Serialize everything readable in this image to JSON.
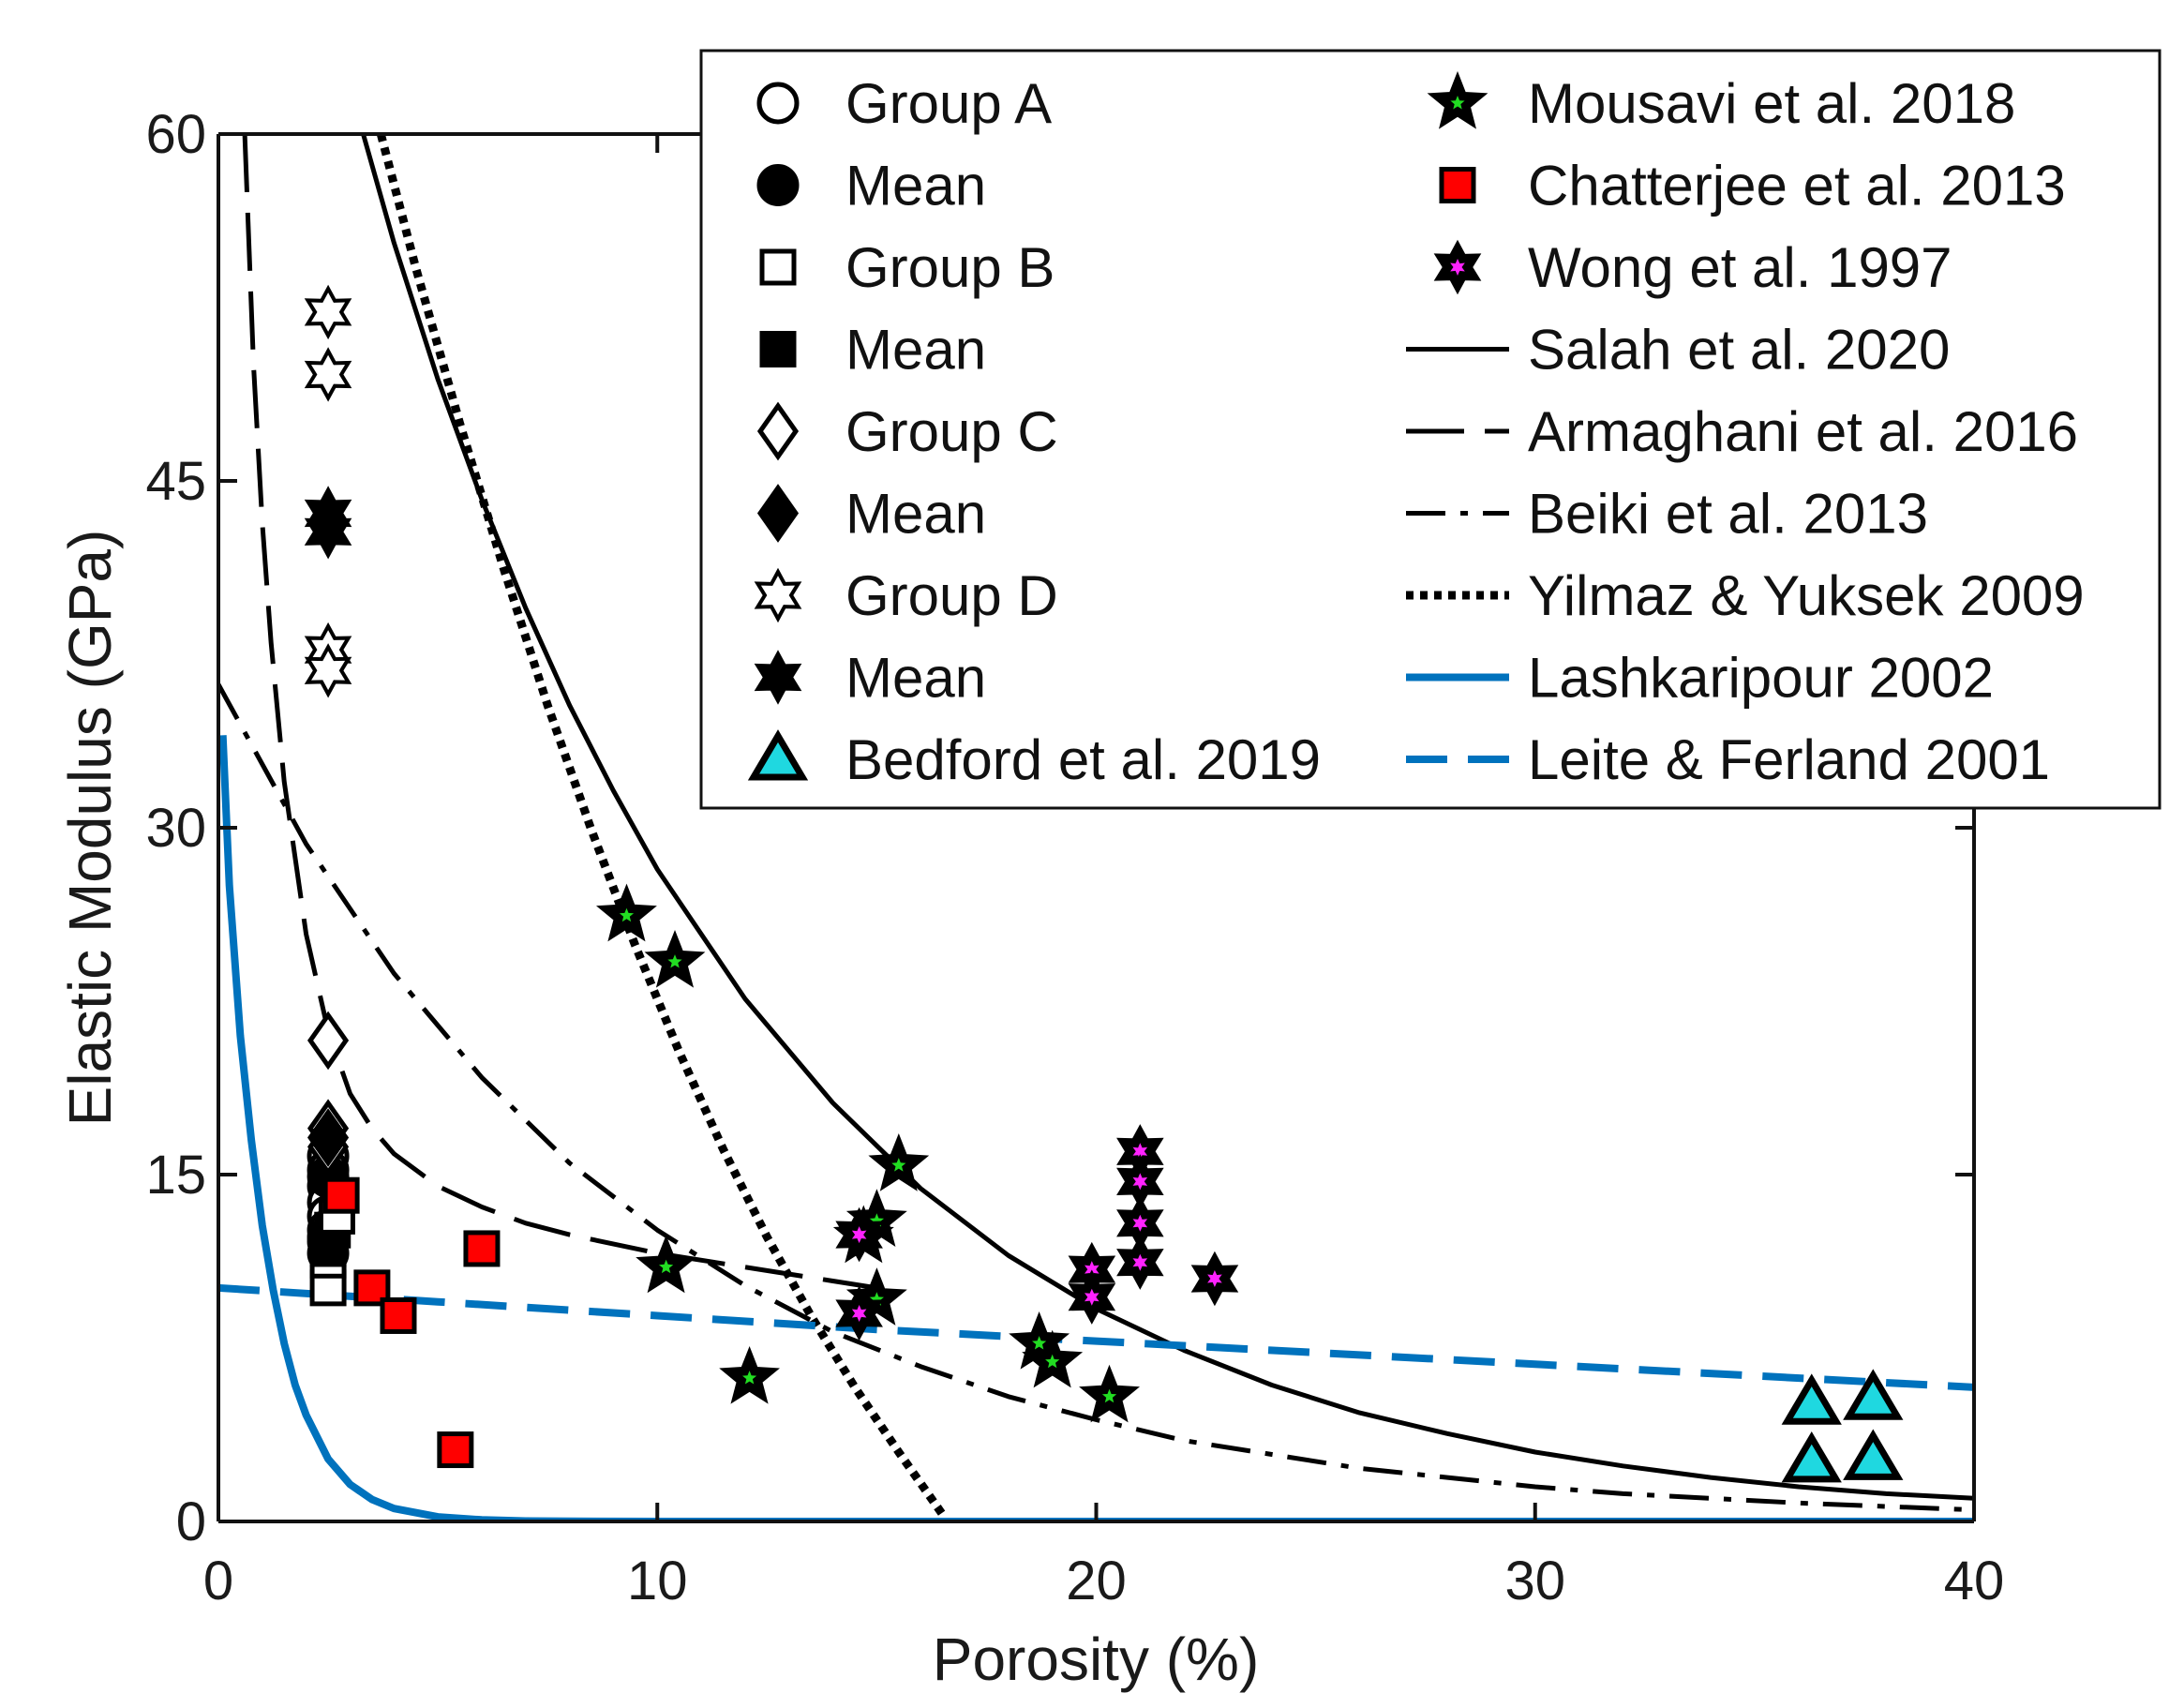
{
  "chart_data": {
    "type": "scatter",
    "xlabel": "Porosity (%)",
    "ylabel": "Elastic Modulus (GPa)",
    "xlim": [
      0,
      40
    ],
    "ylim": [
      0,
      60
    ],
    "xticks": [
      0,
      10,
      20,
      30,
      40
    ],
    "yticks": [
      0,
      15,
      30,
      45,
      60
    ],
    "x_tick_labels": [
      "0",
      "10",
      "20",
      "30",
      "40"
    ],
    "y_tick_labels": [
      "0",
      "15",
      "30",
      "45",
      "60"
    ],
    "grid": false,
    "legend_position": "top-right",
    "scatter_series": [
      {
        "name": "Group A",
        "marker": "circle",
        "filled": false,
        "face": "#ffffff",
        "points": [
          [
            2.5,
            15.8
          ],
          [
            2.5,
            15.2
          ],
          [
            2.5,
            14.5
          ],
          [
            2.5,
            13.8
          ],
          [
            2.5,
            13.2
          ],
          [
            2.5,
            12.6
          ],
          [
            2.5,
            12.1
          ],
          [
            2.5,
            11.6
          ]
        ]
      },
      {
        "name": "Mean",
        "marker": "circle",
        "filled": true,
        "face": "#000000",
        "points": [
          [
            2.5,
            14.9
          ],
          [
            2.5,
            12.3
          ]
        ]
      },
      {
        "name": "Group B",
        "marker": "square",
        "filled": false,
        "face": "#ffffff",
        "points": [
          [
            2.5,
            10.1
          ],
          [
            2.5,
            11.3
          ],
          [
            2.6,
            12.6
          ],
          [
            2.7,
            13.2
          ]
        ]
      },
      {
        "name": "Mean",
        "marker": "square",
        "filled": true,
        "face": "#000000",
        "points": [
          [
            2.5,
            11.8
          ]
        ]
      },
      {
        "name": "Group C",
        "marker": "diamond",
        "filled": false,
        "face": "#ffffff",
        "points": [
          [
            2.5,
            20.8
          ],
          [
            2.5,
            17.0
          ],
          [
            2.5,
            16.2
          ]
        ]
      },
      {
        "name": "Mean",
        "marker": "diamond",
        "filled": true,
        "face": "#000000",
        "points": [
          [
            2.5,
            16.6
          ]
        ]
      },
      {
        "name": "Group D",
        "marker": "hexagram",
        "filled": false,
        "face": "#ffffff",
        "points": [
          [
            2.5,
            52.3
          ],
          [
            2.5,
            49.6
          ],
          [
            2.5,
            37.7
          ],
          [
            2.5,
            36.8
          ]
        ]
      },
      {
        "name": "Mean",
        "marker": "hexagram",
        "filled": true,
        "face": "#000000",
        "points": [
          [
            2.5,
            43.6
          ],
          [
            2.5,
            42.8
          ]
        ]
      },
      {
        "name": "Bedford et al. 2019",
        "marker": "triangle",
        "filled": true,
        "face": "#1fd8e0",
        "points": [
          [
            36.3,
            5.1
          ],
          [
            37.7,
            5.3
          ],
          [
            36.3,
            2.6
          ],
          [
            37.7,
            2.7
          ]
        ]
      },
      {
        "name": "Mousavi et al. 2018",
        "marker": "star",
        "filled": true,
        "face": "#000000",
        "points": [
          [
            9.3,
            26.2
          ],
          [
            10.4,
            24.2
          ],
          [
            15.5,
            15.4
          ],
          [
            15.0,
            13.0
          ],
          [
            10.2,
            11.0
          ],
          [
            15.0,
            9.6
          ],
          [
            12.1,
            6.2
          ],
          [
            18.7,
            7.7
          ],
          [
            19.0,
            6.9
          ],
          [
            20.3,
            5.4
          ],
          [
            14.7,
            12.3
          ]
        ]
      },
      {
        "name": "Chatterjee et al. 2013",
        "marker": "square",
        "filled": true,
        "face": "#ff0000",
        "points": [
          [
            2.8,
            14.1
          ],
          [
            6.0,
            11.8
          ],
          [
            3.5,
            10.1
          ],
          [
            4.1,
            8.9
          ],
          [
            5.4,
            3.1
          ]
        ]
      },
      {
        "name": "Wong et al. 1997",
        "marker": "hexagram",
        "filled": true,
        "face": "#000000",
        "points": [
          [
            21.0,
            16.0
          ],
          [
            21.0,
            14.7
          ],
          [
            21.0,
            12.9
          ],
          [
            21.0,
            11.2
          ],
          [
            19.9,
            10.9
          ],
          [
            19.9,
            9.7
          ],
          [
            22.7,
            10.5
          ],
          [
            14.6,
            12.4
          ],
          [
            14.6,
            9.0
          ]
        ]
      }
    ],
    "line_series": [
      {
        "name": "Salah et al. 2020",
        "style": "solid",
        "color": "#000000",
        "x": [
          3.3,
          4,
          5,
          6,
          7,
          8,
          9,
          10,
          12,
          14,
          16,
          18,
          20,
          22,
          24,
          26,
          28,
          30,
          32,
          34,
          36,
          38,
          40
        ],
        "y": [
          60.0,
          55.3,
          49.4,
          44.2,
          39.5,
          35.3,
          31.6,
          28.2,
          22.6,
          18.1,
          14.4,
          11.5,
          9.2,
          7.4,
          5.9,
          4.7,
          3.8,
          3.0,
          2.4,
          1.9,
          1.5,
          1.2,
          1.0
        ]
      },
      {
        "name": "Armaghani et al. 2016",
        "style": "longdash",
        "color": "#000000",
        "x": [
          0.6,
          0.8,
          1.0,
          1.2,
          1.5,
          2.0,
          2.5,
          3.0,
          3.5,
          4.0,
          5.0,
          6.0,
          7.0,
          8.0,
          10.0,
          12.0,
          14.0,
          15.0
        ],
        "y": [
          60.0,
          50.0,
          43.2,
          38.0,
          32.0,
          25.4,
          21.2,
          18.5,
          17.0,
          15.9,
          14.5,
          13.6,
          12.9,
          12.4,
          11.6,
          11.0,
          10.4,
          10.1
        ]
      },
      {
        "name": "Beiki et al. 2013",
        "style": "dashdot",
        "color": "#000000",
        "x": [
          0,
          2,
          4,
          6,
          8,
          10,
          12,
          14,
          16,
          18,
          20,
          22,
          24,
          26,
          28,
          30,
          32,
          34,
          36,
          38,
          40
        ],
        "y": [
          36.2,
          29.3,
          23.7,
          19.2,
          15.5,
          12.6,
          10.2,
          8.2,
          6.7,
          5.4,
          4.4,
          3.5,
          2.9,
          2.3,
          1.9,
          1.5,
          1.2,
          1.0,
          0.8,
          0.65,
          0.5
        ]
      },
      {
        "name": "Yilmaz & Yuksek 2009",
        "style": "dotted",
        "color": "#000000",
        "x": [
          3.7,
          4.5,
          5.5,
          6.5,
          7.5,
          8.5,
          9.5,
          10.5,
          11.5,
          12.5,
          13.5,
          14.5,
          15.5,
          16.5
        ],
        "y": [
          60.0,
          54.2,
          47.5,
          41.2,
          35.3,
          29.9,
          24.9,
          20.3,
          16.1,
          12.3,
          8.9,
          5.8,
          3.0,
          0.3
        ]
      },
      {
        "name": "Lashkaripour 2002",
        "style": "solid",
        "color": "#0072bd",
        "x": [
          0.1,
          0.25,
          0.5,
          0.75,
          1.0,
          1.25,
          1.5,
          1.75,
          2.0,
          2.5,
          3.0,
          3.5,
          4.0,
          5.0,
          6.0,
          7.0,
          8.0,
          10.0,
          15.0,
          20.0,
          30.0,
          40.0
        ],
        "y": [
          34.0,
          27.5,
          21.0,
          16.5,
          12.8,
          10.0,
          7.7,
          5.9,
          4.6,
          2.7,
          1.6,
          0.95,
          0.56,
          0.2,
          0.07,
          0.02,
          0.01,
          0,
          0,
          0,
          0,
          0
        ]
      },
      {
        "name": "Leite & Ferland 2001",
        "style": "dashed",
        "color": "#0072bd",
        "x": [
          0,
          5,
          10,
          15,
          20,
          25,
          30,
          35,
          40
        ],
        "y": [
          10.1,
          9.5,
          8.9,
          8.3,
          7.8,
          7.3,
          6.8,
          6.3,
          5.8
        ]
      }
    ],
    "legend_entries": [
      {
        "label": "Group A",
        "kind": "marker",
        "marker": "circle",
        "filled": false,
        "face": "#ffffff",
        "column": "left"
      },
      {
        "label": "Mean",
        "kind": "marker",
        "marker": "circle",
        "filled": true,
        "face": "#000000",
        "column": "left"
      },
      {
        "label": "Group B",
        "kind": "marker",
        "marker": "square",
        "filled": false,
        "face": "#ffffff",
        "column": "left"
      },
      {
        "label": "Mean",
        "kind": "marker",
        "marker": "square",
        "filled": true,
        "face": "#000000",
        "column": "left"
      },
      {
        "label": "Group C",
        "kind": "marker",
        "marker": "diamond",
        "filled": false,
        "face": "#ffffff",
        "column": "left"
      },
      {
        "label": "Mean",
        "kind": "marker",
        "marker": "diamond",
        "filled": true,
        "face": "#000000",
        "column": "left"
      },
      {
        "label": "Group D",
        "kind": "marker",
        "marker": "hexagram",
        "filled": false,
        "face": "#ffffff",
        "column": "left"
      },
      {
        "label": "Mean",
        "kind": "marker",
        "marker": "hexagram",
        "filled": true,
        "face": "#000000",
        "column": "left"
      },
      {
        "label": "Bedford et al. 2019",
        "kind": "marker",
        "marker": "triangle",
        "filled": true,
        "face": "#1fd8e0",
        "column": "left"
      },
      {
        "label": "Mousavi et al. 2018",
        "kind": "marker",
        "marker": "star",
        "filled": true,
        "face": "#000000",
        "inner": "#22dd22",
        "column": "right"
      },
      {
        "label": "Chatterjee et al. 2013",
        "kind": "marker",
        "marker": "square",
        "filled": true,
        "face": "#ff0000",
        "column": "right"
      },
      {
        "label": "Wong et al. 1997",
        "kind": "marker",
        "marker": "hexagram",
        "filled": true,
        "face": "#000000",
        "inner": "#ff22ff",
        "column": "right"
      },
      {
        "label": "Salah et al. 2020",
        "kind": "line",
        "style": "solid",
        "color": "#000000",
        "column": "right"
      },
      {
        "label": "Armaghani et al. 2016",
        "kind": "line",
        "style": "longdash",
        "color": "#000000",
        "column": "right"
      },
      {
        "label": "Beiki et al. 2013",
        "kind": "line",
        "style": "dashdot",
        "color": "#000000",
        "column": "right"
      },
      {
        "label": "Yilmaz & Yuksek 2009",
        "kind": "line",
        "style": "dotted",
        "color": "#000000",
        "column": "right"
      },
      {
        "label": "Lashkaripour 2002",
        "kind": "line",
        "style": "solid",
        "color": "#0072bd",
        "column": "right"
      },
      {
        "label": "Leite & Ferland 2001",
        "kind": "line",
        "style": "dashed",
        "color": "#0072bd",
        "column": "right"
      }
    ]
  }
}
